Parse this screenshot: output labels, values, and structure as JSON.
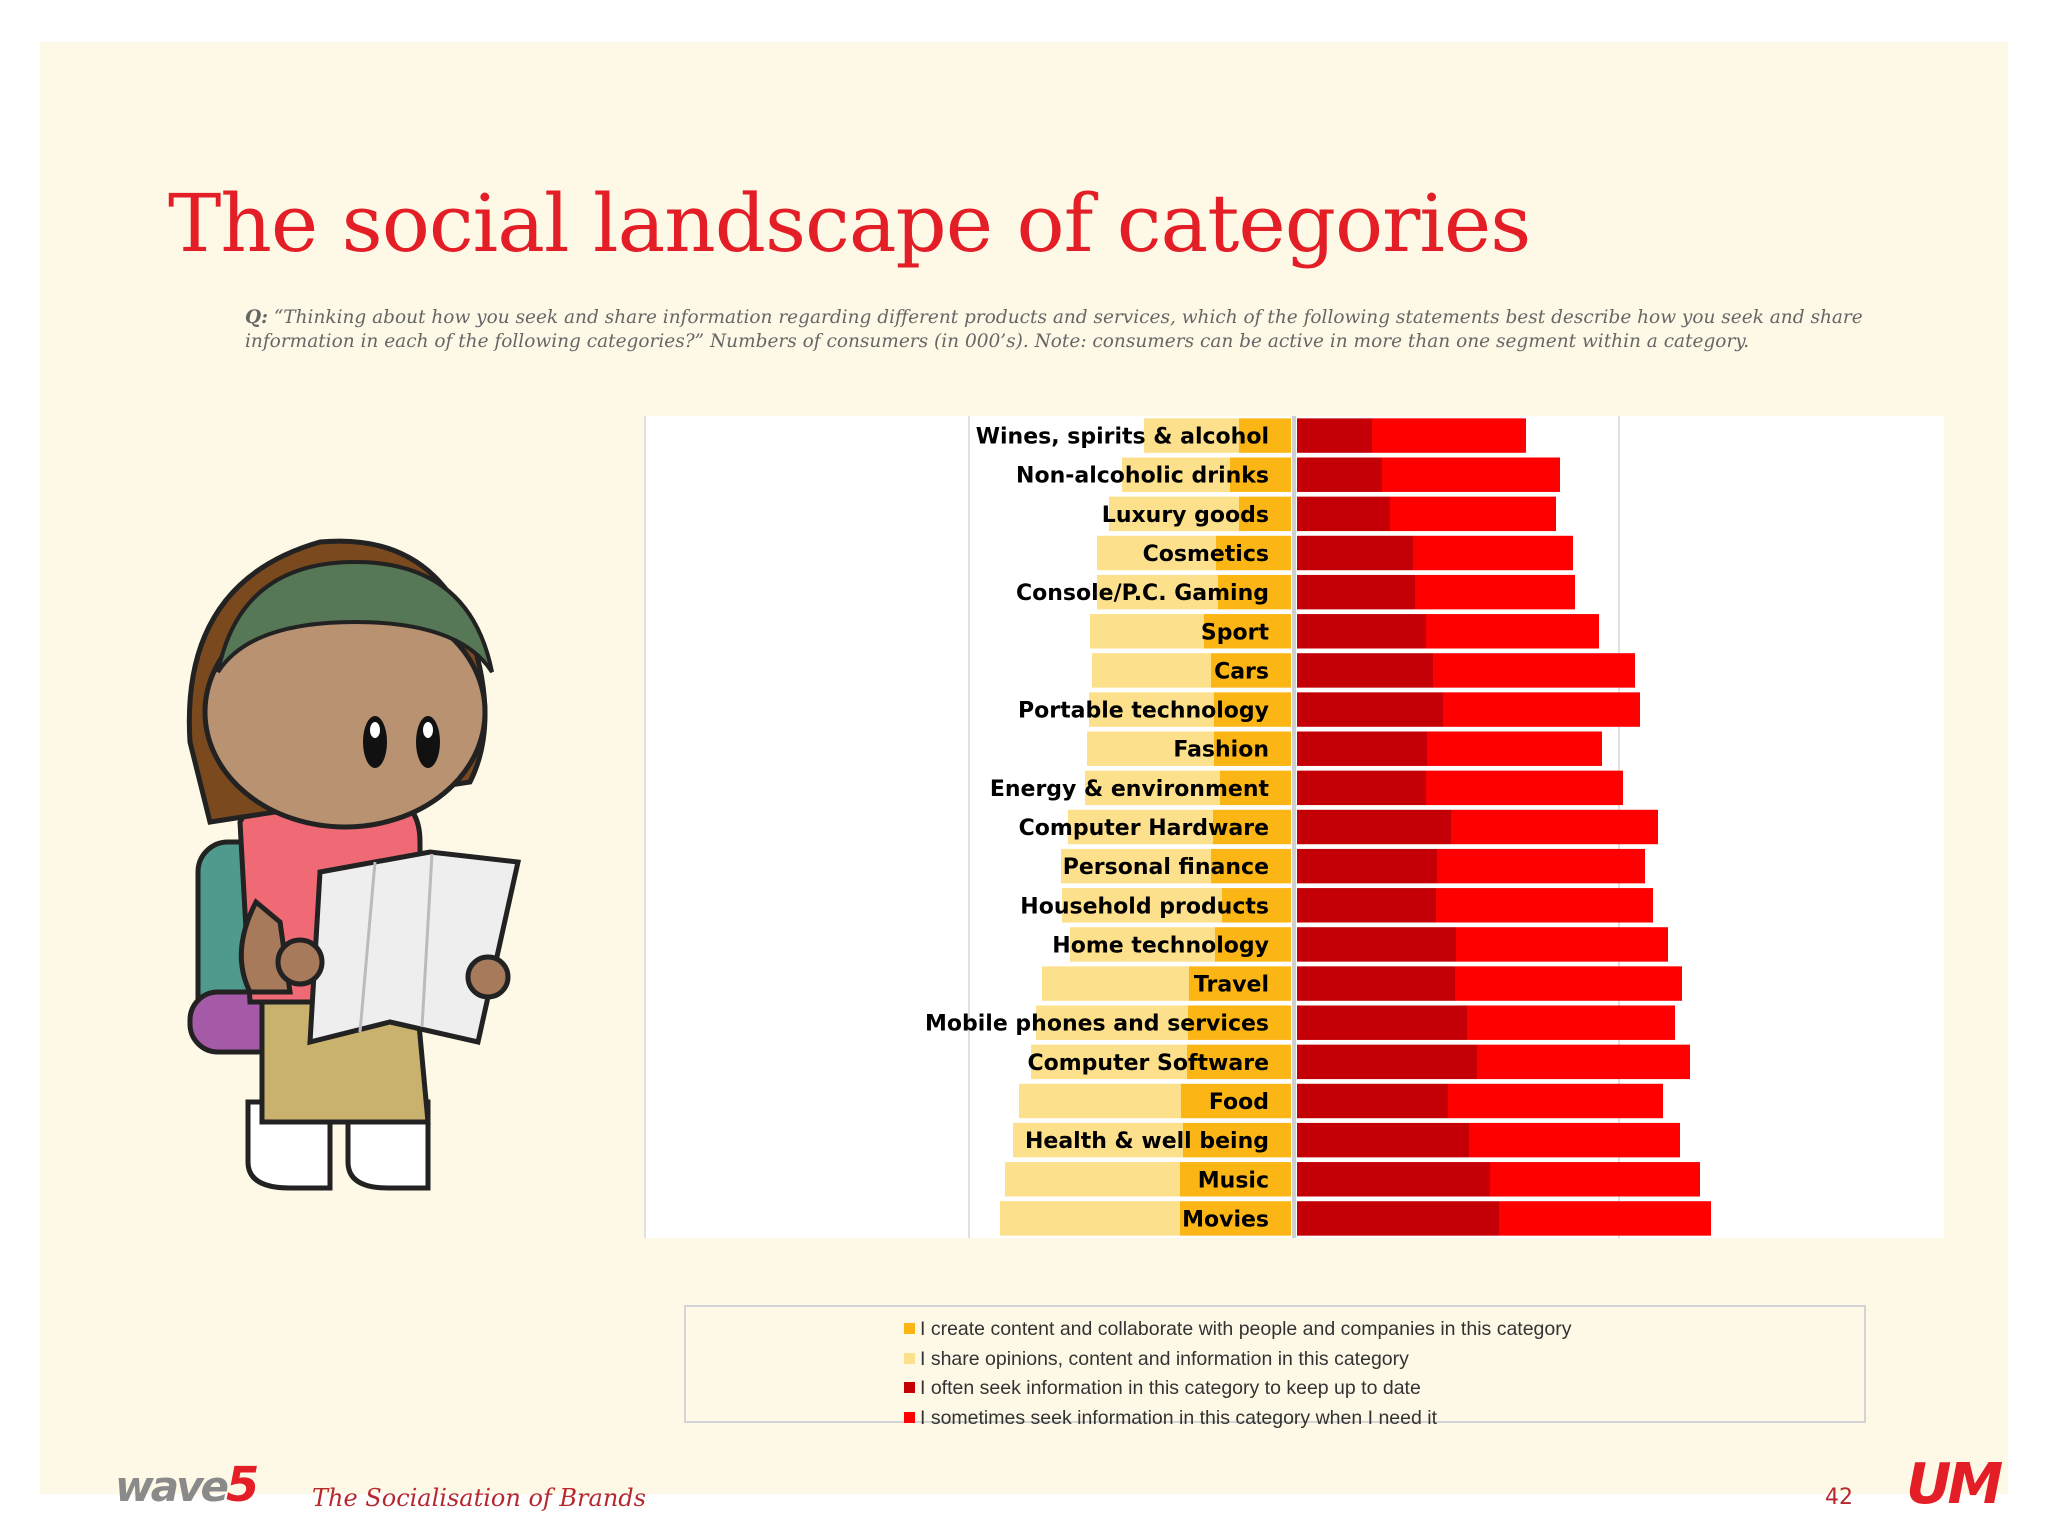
{
  "title": "The social landscape of categories",
  "question": {
    "prefix": "Q:",
    "text": "“Thinking about how you seek and share information regarding different products and services, which of the following statements best describe how you seek and share information in each of the following categories?” Numbers of consumers (in 000’s). Note: consumers can be active in more than one segment within a category."
  },
  "chart_data": {
    "type": "bar",
    "orientation": "horizontal",
    "layout": "diverging stacked",
    "title": "",
    "categories": [
      "Wines, spirits & alcohol",
      "Non-alcoholic drinks",
      "Luxury goods",
      "Cosmetics",
      "Console/P.C. Gaming",
      "Sport",
      "Cars",
      "Portable technology",
      "Fashion",
      "Energy & environment",
      "Computer Hardware",
      "Personal finance",
      "Household products",
      "Home technology",
      "Travel",
      "Mobile phones and services",
      "Computer Software",
      "Food",
      "Health & well being",
      "Music",
      "Movies"
    ],
    "series": [
      {
        "name": "I create content and collaborate with people and companies in this category",
        "side": "left",
        "color": "#fbb615",
        "values": [
          55,
          64,
          55,
          78,
          76,
          90,
          83,
          80,
          80,
          74,
          81,
          83,
          72,
          79,
          105,
          106,
          107,
          113,
          111,
          114,
          114
        ]
      },
      {
        "name": "I share opinions, content and information in this category",
        "side": "left",
        "color": "#fde08b",
        "values": [
          95,
          108,
          130,
          119,
          121,
          114,
          119,
          125,
          127,
          135,
          145,
          150,
          160,
          145,
          147,
          152,
          156,
          162,
          170,
          175,
          180
        ]
      },
      {
        "name": "I often seek information in this category to keep up to date",
        "side": "right",
        "color": "#c40006",
        "values": [
          78,
          88,
          96,
          119,
          121,
          132,
          139,
          149,
          133,
          132,
          157,
          143,
          142,
          162,
          161,
          173,
          183,
          154,
          175,
          196,
          205
        ]
      },
      {
        "name": "I sometimes seek information in this category when I need it",
        "side": "right",
        "color": "#fe0000",
        "values": [
          154,
          178,
          166,
          160,
          160,
          173,
          202,
          197,
          175,
          197,
          207,
          208,
          217,
          212,
          227,
          208,
          213,
          215,
          211,
          210,
          212
        ]
      }
    ],
    "xlim": [
      -650,
      650
    ],
    "grid": true,
    "gridlines": [
      -325,
      0,
      325
    ],
    "legend": "bottom"
  },
  "footer": {
    "brand_left": "wave",
    "brand_left_number": "5",
    "tagline": "The Socialisation of Brands",
    "page_number": "42",
    "brand_right": "UM"
  }
}
